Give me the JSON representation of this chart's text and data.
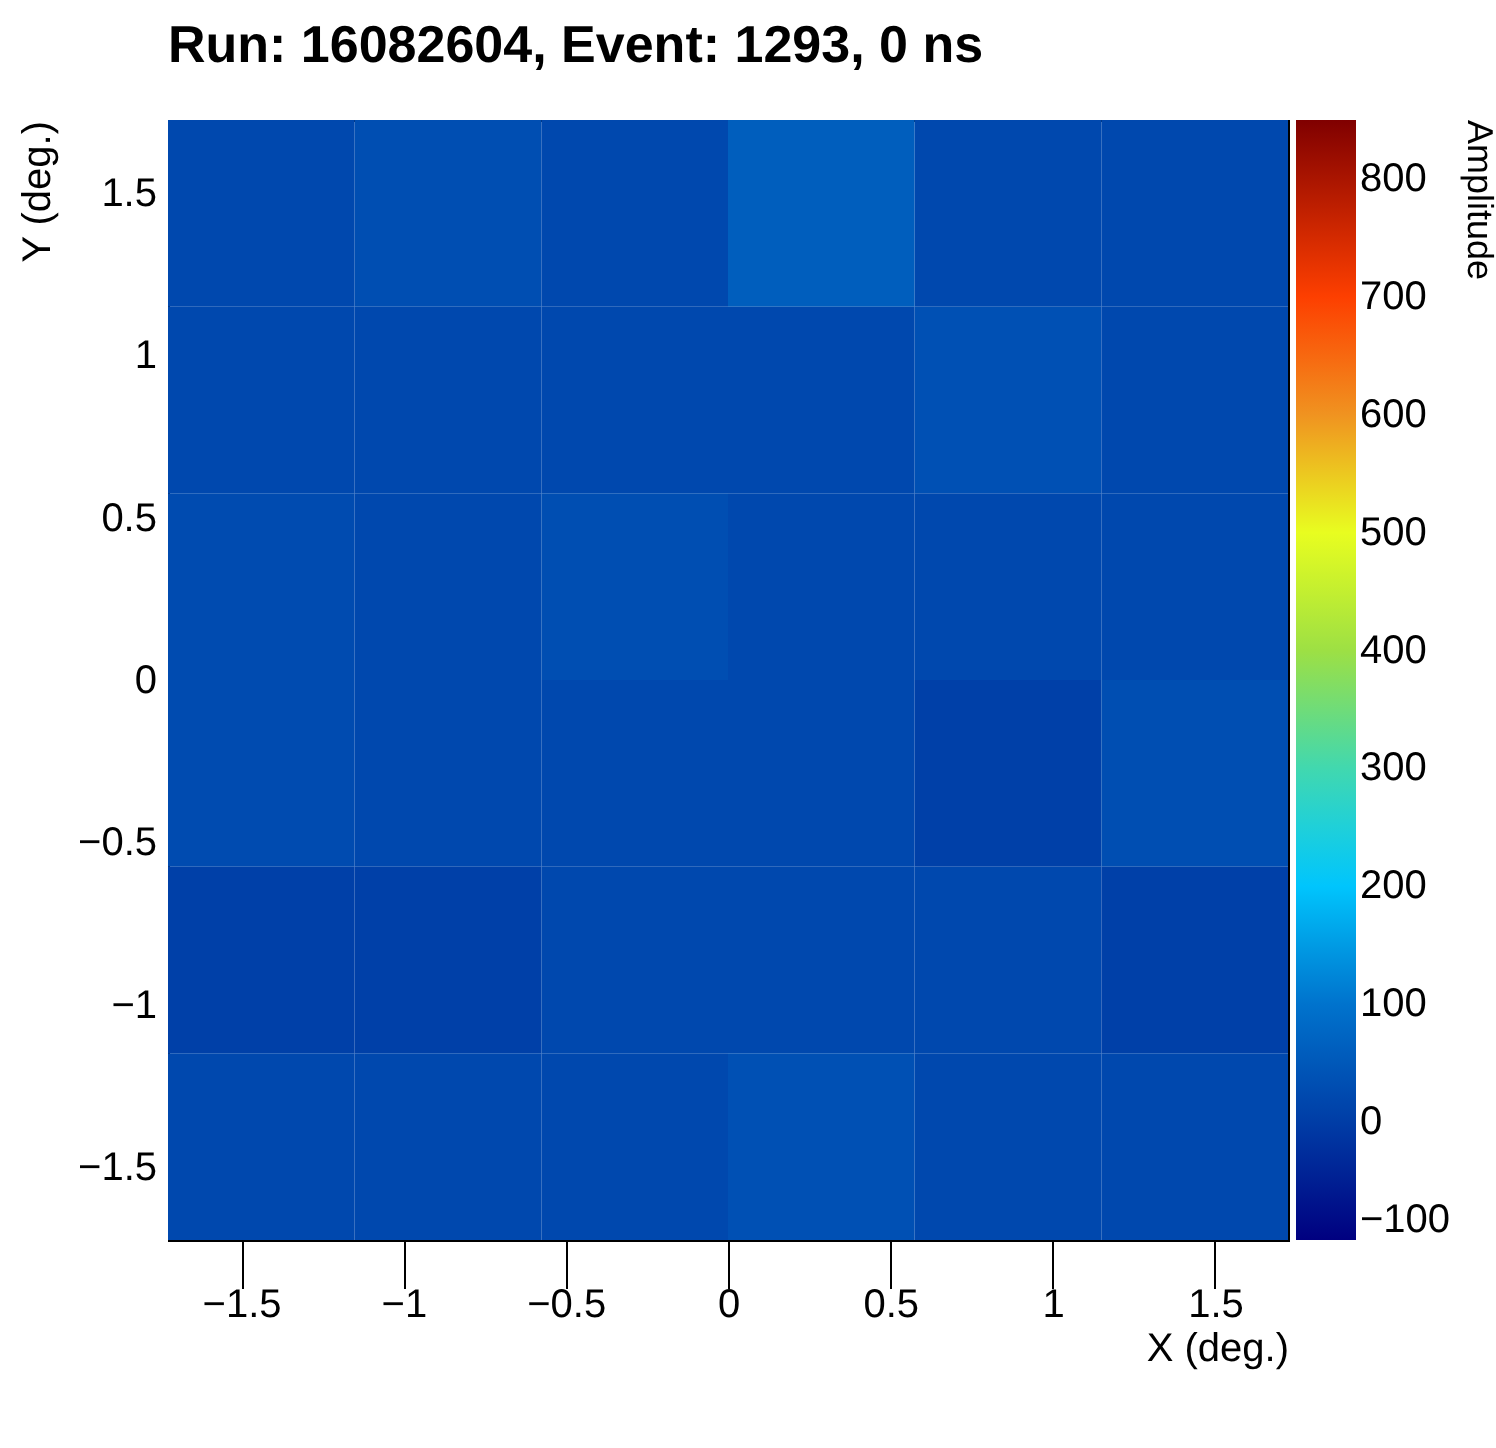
{
  "chart_data": {
    "type": "heatmap",
    "title": "Run: 16082604, Event: 1293, 0 ns",
    "xlabel": "X (deg.)",
    "ylabel": "Y (deg.)",
    "clabel": "Amplitude",
    "x": [
      -1.4375,
      -0.8625,
      -0.2875,
      0.2875,
      0.8625,
      1.4375
    ],
    "y": [
      1.4375,
      0.8625,
      0.2875,
      -0.2875,
      -0.8625,
      -1.4375
    ],
    "xlim": [
      -1.725,
      1.725
    ],
    "xticks": [
      -1.5,
      -1,
      -0.5,
      0,
      0.5,
      1,
      1.5
    ],
    "ylim": [
      -1.725,
      1.725
    ],
    "yticks": [
      -1.5,
      -1,
      -0.5,
      0,
      0.5,
      1,
      1.5
    ],
    "cells": [
      [
        20,
        30,
        20,
        60,
        20,
        20
      ],
      [
        20,
        20,
        20,
        20,
        35,
        20
      ],
      [
        25,
        20,
        30,
        20,
        20,
        20
      ],
      [
        25,
        20,
        20,
        20,
        5,
        30
      ],
      [
        5,
        5,
        20,
        20,
        20,
        5
      ],
      [
        20,
        20,
        20,
        35,
        20,
        20
      ]
    ],
    "clim": [
      -100,
      850
    ],
    "cticks": [
      -100,
      0,
      100,
      200,
      300,
      400,
      500,
      600,
      700,
      800
    ]
  }
}
